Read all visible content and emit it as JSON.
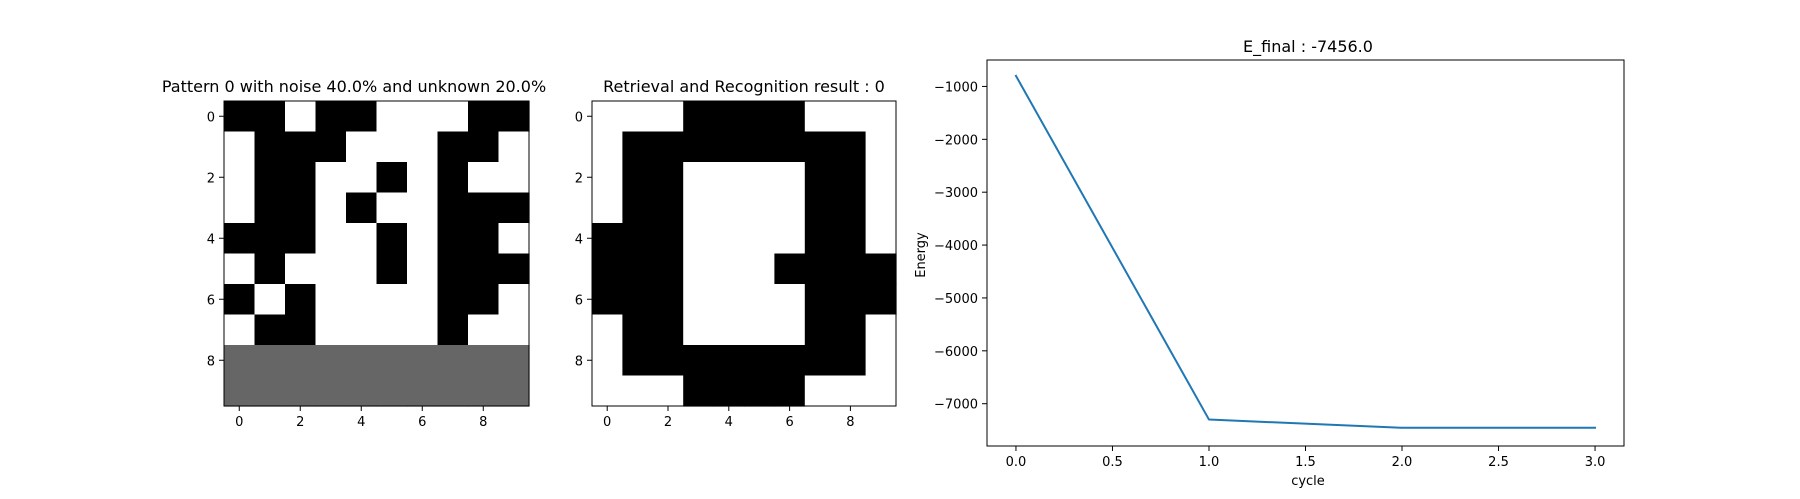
{
  "chart_data": [
    {
      "type": "heatmap",
      "title": "Pattern 0 with noise 40.0% and unknown 20.0%",
      "xticks": [
        0,
        2,
        4,
        6,
        8
      ],
      "yticks": [
        0,
        2,
        4,
        6,
        8
      ],
      "grid": false,
      "colors": {
        "1": "#000000",
        "0": "#ffffff",
        "-1": "#666666"
      },
      "cells": [
        [
          1,
          1,
          0,
          1,
          1,
          0,
          0,
          0,
          1,
          1
        ],
        [
          0,
          1,
          1,
          1,
          0,
          0,
          0,
          1,
          1,
          0
        ],
        [
          0,
          1,
          1,
          0,
          0,
          1,
          0,
          1,
          0,
          0
        ],
        [
          0,
          1,
          1,
          0,
          1,
          0,
          0,
          1,
          1,
          1
        ],
        [
          1,
          1,
          1,
          0,
          0,
          1,
          0,
          1,
          1,
          0
        ],
        [
          0,
          1,
          0,
          0,
          0,
          1,
          0,
          1,
          1,
          1
        ],
        [
          1,
          0,
          1,
          0,
          0,
          0,
          0,
          1,
          1,
          0
        ],
        [
          0,
          1,
          1,
          0,
          0,
          0,
          0,
          1,
          0,
          0
        ],
        [
          -1,
          -1,
          -1,
          -1,
          -1,
          -1,
          -1,
          -1,
          -1,
          -1
        ],
        [
          -1,
          -1,
          -1,
          -1,
          -1,
          -1,
          -1,
          -1,
          -1,
          -1
        ]
      ]
    },
    {
      "type": "heatmap",
      "title": "Retrieval and Recognition result : 0",
      "xticks": [
        0,
        2,
        4,
        6,
        8
      ],
      "yticks": [
        0,
        2,
        4,
        6,
        8
      ],
      "grid": false,
      "colors": {
        "1": "#000000",
        "0": "#ffffff"
      },
      "cells": [
        [
          0,
          0,
          0,
          1,
          1,
          1,
          1,
          0,
          0,
          0
        ],
        [
          0,
          1,
          1,
          1,
          1,
          1,
          1,
          1,
          1,
          0
        ],
        [
          0,
          1,
          1,
          0,
          0,
          0,
          0,
          1,
          1,
          0
        ],
        [
          0,
          1,
          1,
          0,
          0,
          0,
          0,
          1,
          1,
          0
        ],
        [
          1,
          1,
          1,
          0,
          0,
          0,
          0,
          1,
          1,
          0
        ],
        [
          1,
          1,
          1,
          0,
          0,
          0,
          1,
          1,
          1,
          1
        ],
        [
          1,
          1,
          1,
          0,
          0,
          0,
          0,
          1,
          1,
          1
        ],
        [
          0,
          1,
          1,
          0,
          0,
          0,
          0,
          1,
          1,
          0
        ],
        [
          0,
          1,
          1,
          1,
          1,
          1,
          1,
          1,
          1,
          0
        ],
        [
          0,
          0,
          0,
          1,
          1,
          1,
          1,
          0,
          0,
          0
        ]
      ]
    },
    {
      "type": "line",
      "title": "E_final : -7456.0",
      "xlabel": "cycle",
      "ylabel": "Energy",
      "xlim": [
        -0.15,
        3.15
      ],
      "ylim": [
        -7800,
        -500
      ],
      "xticks": [
        0.0,
        0.5,
        1.0,
        1.5,
        2.0,
        2.5,
        3.0
      ],
      "yticks": [
        -1000,
        -2000,
        -3000,
        -4000,
        -5000,
        -6000,
        -7000
      ],
      "grid": false,
      "series": [
        {
          "color": "#1f77b4",
          "x": [
            0,
            1,
            2,
            3
          ],
          "y": [
            -800,
            -7300,
            -7456,
            -7456
          ]
        }
      ]
    }
  ]
}
